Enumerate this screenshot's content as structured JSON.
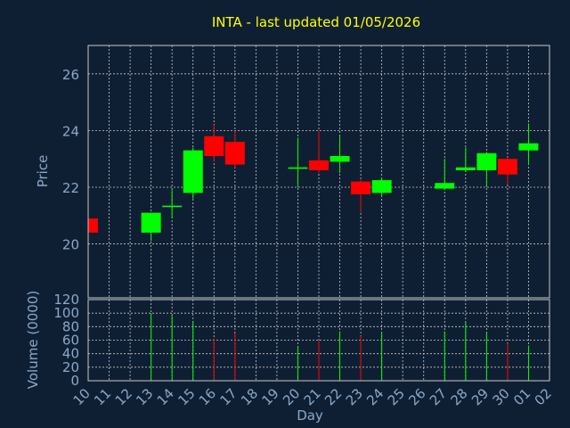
{
  "chart_data": {
    "type": "candlestick",
    "title": "INTA - last updated 01/05/2026",
    "xlabel": "Day",
    "categories": [
      "10",
      "11",
      "12",
      "13",
      "14",
      "15",
      "16",
      "17",
      "18",
      "19",
      "20",
      "21",
      "22",
      "23",
      "24",
      "25",
      "26",
      "27",
      "28",
      "29",
      "30",
      "01",
      "02"
    ],
    "price_panel": {
      "ylabel": "Price",
      "ylim": [
        18.1,
        27.0
      ],
      "yticks": [
        20,
        22,
        24,
        26
      ],
      "candles": [
        {
          "x": "10",
          "open": 20.9,
          "close": 20.4,
          "high": 21.0,
          "low": 20.3
        },
        {
          "x": "13",
          "open": 20.4,
          "close": 21.1,
          "high": 21.1,
          "low": 20.1
        },
        {
          "x": "14",
          "open": 21.3,
          "close": 21.35,
          "high": 21.9,
          "low": 20.9
        },
        {
          "x": "15",
          "open": 21.8,
          "close": 23.3,
          "high": 23.4,
          "low": 21.6
        },
        {
          "x": "16",
          "open": 23.8,
          "close": 23.1,
          "high": 24.2,
          "low": 22.9
        },
        {
          "x": "17",
          "open": 23.6,
          "close": 22.8,
          "high": 24.0,
          "low": 22.7
        },
        {
          "x": "20",
          "open": 22.65,
          "close": 22.7,
          "high": 23.75,
          "low": 22.0
        },
        {
          "x": "21",
          "open": 22.95,
          "close": 22.6,
          "high": 24.0,
          "low": 22.5
        },
        {
          "x": "22",
          "open": 22.9,
          "close": 23.1,
          "high": 23.8,
          "low": 22.5
        },
        {
          "x": "23",
          "open": 22.2,
          "close": 21.75,
          "high": 22.25,
          "low": 21.1
        },
        {
          "x": "24",
          "open": 21.8,
          "close": 22.25,
          "high": 22.35,
          "low": 21.7
        },
        {
          "x": "27",
          "open": 21.95,
          "close": 22.15,
          "high": 23.0,
          "low": 21.9
        },
        {
          "x": "28",
          "open": 22.6,
          "close": 22.7,
          "high": 23.4,
          "low": 22.55
        },
        {
          "x": "29",
          "open": 22.6,
          "close": 23.2,
          "high": 23.25,
          "low": 22.0
        },
        {
          "x": "30",
          "open": 23.0,
          "close": 22.45,
          "high": 23.05,
          "low": 22.1
        },
        {
          "x": "01",
          "open": 23.3,
          "close": 23.55,
          "high": 24.25,
          "low": 22.8
        }
      ]
    },
    "volume_panel": {
      "ylabel": "Volume (0000)",
      "ylim": [
        0,
        120
      ],
      "yticks": [
        0,
        20,
        40,
        60,
        80,
        100,
        120
      ],
      "bars": [
        {
          "x": "13",
          "value": 100,
          "direction": "up"
        },
        {
          "x": "14",
          "value": 97,
          "direction": "up"
        },
        {
          "x": "15",
          "value": 88,
          "direction": "up"
        },
        {
          "x": "16",
          "value": 62,
          "direction": "down"
        },
        {
          "x": "17",
          "value": 70,
          "direction": "down"
        },
        {
          "x": "20",
          "value": 50,
          "direction": "up"
        },
        {
          "x": "21",
          "value": 60,
          "direction": "down"
        },
        {
          "x": "22",
          "value": 73,
          "direction": "up"
        },
        {
          "x": "23",
          "value": 66,
          "direction": "down"
        },
        {
          "x": "24",
          "value": 70,
          "direction": "up"
        },
        {
          "x": "27",
          "value": 73,
          "direction": "up"
        },
        {
          "x": "28",
          "value": 86,
          "direction": "up"
        },
        {
          "x": "29",
          "value": 70,
          "direction": "up"
        },
        {
          "x": "30",
          "value": 55,
          "direction": "down"
        },
        {
          "x": "01",
          "value": 52,
          "direction": "up"
        }
      ]
    },
    "grid": true,
    "colors": {
      "background": "#0f1f33",
      "up": "#00ff00",
      "down": "#ff0000",
      "title": "#ffff00",
      "axis_text": "#8aa8c8",
      "frame": "#c8c8c8",
      "grid": "#c8c8c8"
    }
  }
}
